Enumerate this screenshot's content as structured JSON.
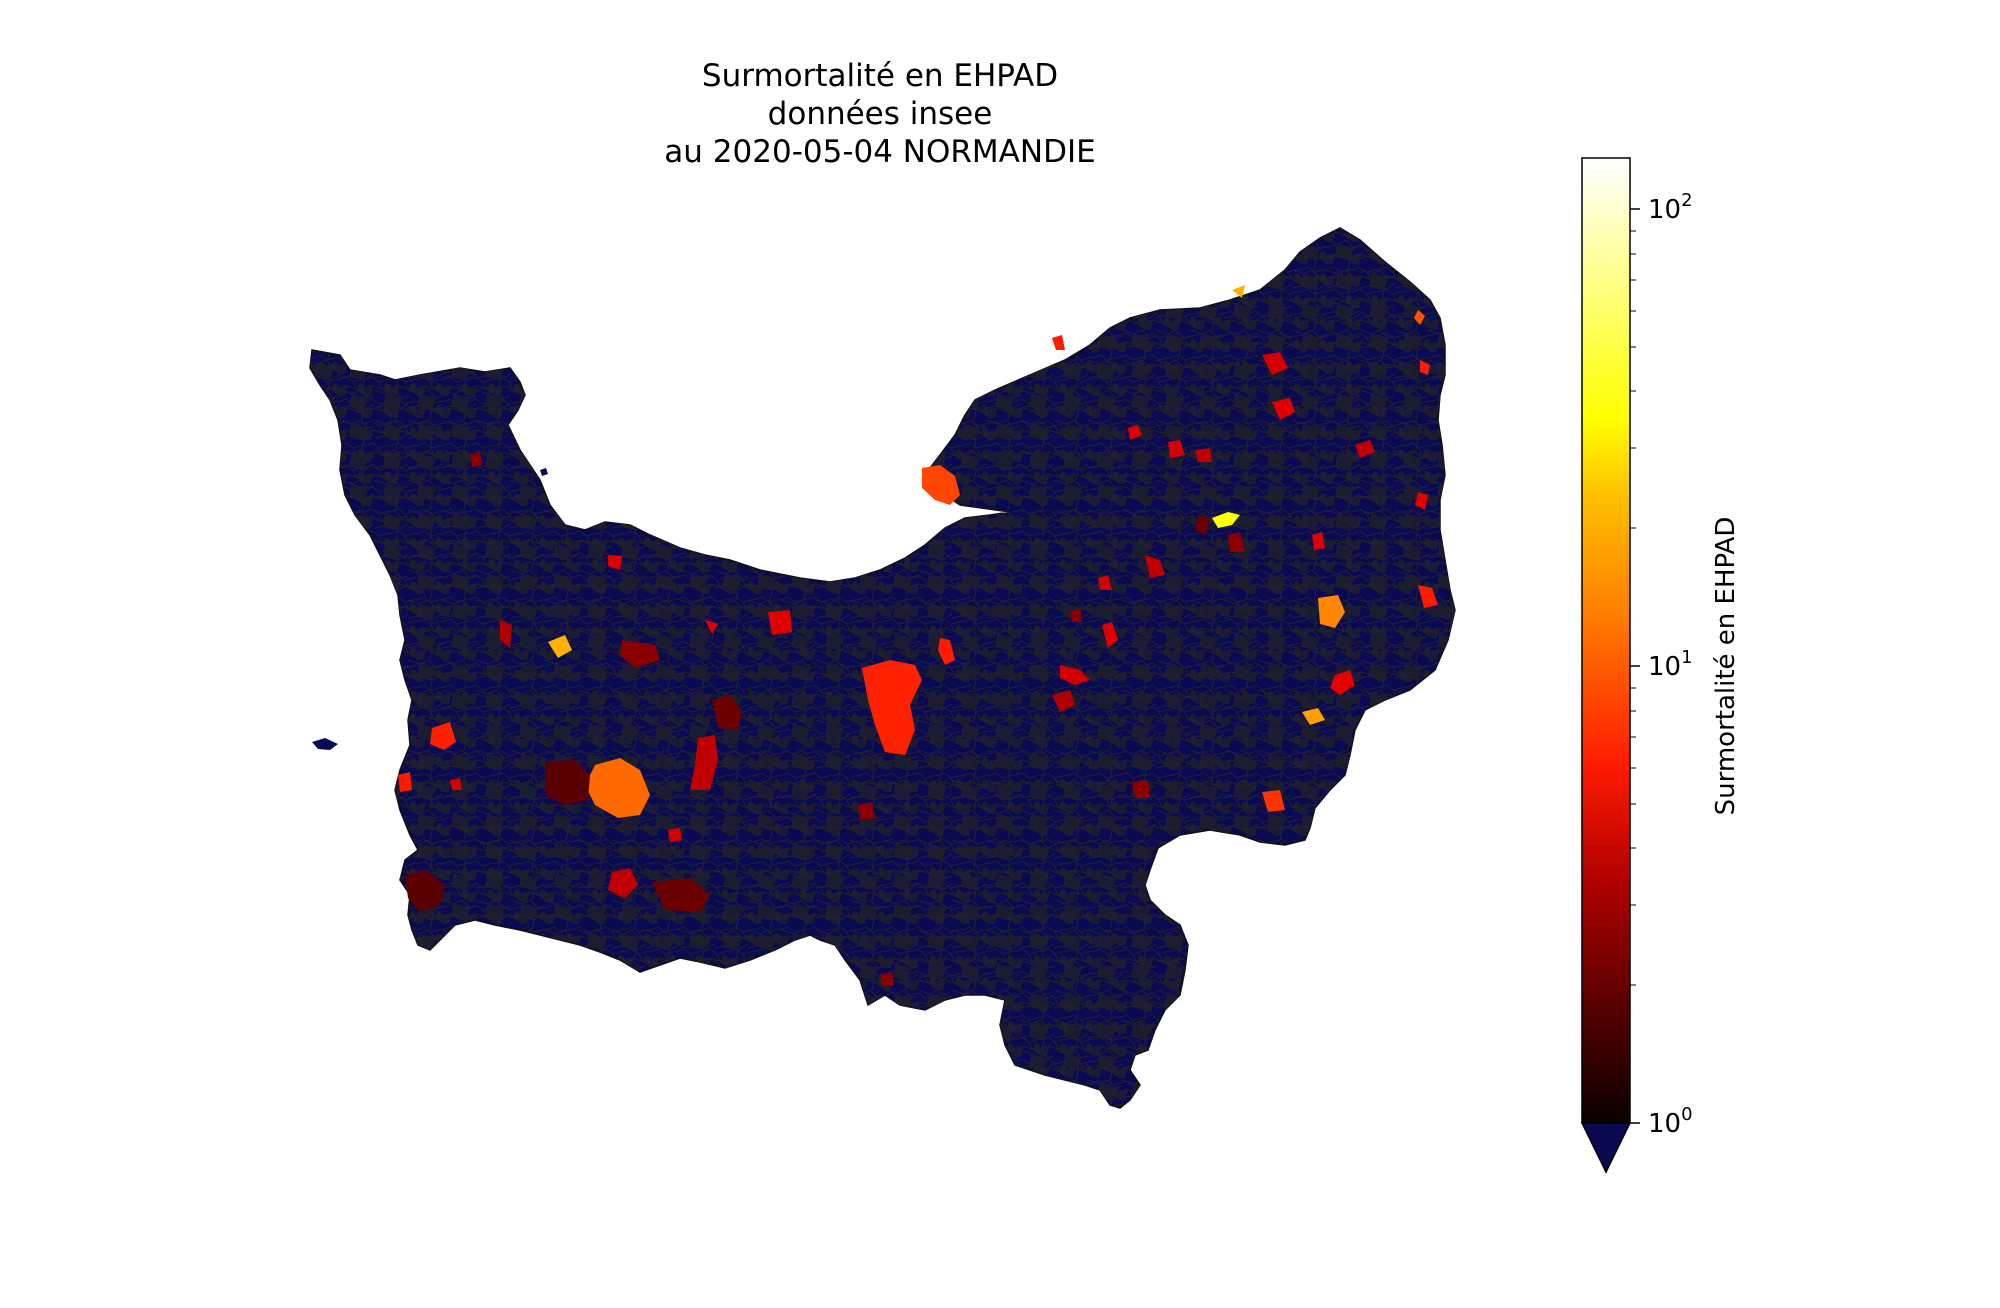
{
  "figure": {
    "title_lines": [
      "Surmortalité en EHPAD",
      "données insee",
      "au 2020-05-04 NORMANDIE"
    ]
  },
  "colorbar": {
    "label": "Surmortalité en EHPAD",
    "scale": "log",
    "range": [
      1,
      130
    ],
    "ticks": [
      {
        "base": "10",
        "exp": "0",
        "value": 1
      },
      {
        "base": "10",
        "exp": "1",
        "value": 10
      },
      {
        "base": "10",
        "exp": "2",
        "value": 100
      }
    ],
    "colormap": "hot",
    "under_color": "#0a0a52",
    "extend": "min"
  },
  "map": {
    "region": "NORMANDIE",
    "base_fill": "#0a0a52",
    "grey_fill": "#1e1e2c",
    "border_color": "#232323",
    "notable_communes_values": [
      2,
      3,
      5,
      6,
      8,
      10,
      12,
      15,
      20,
      40
    ]
  }
}
